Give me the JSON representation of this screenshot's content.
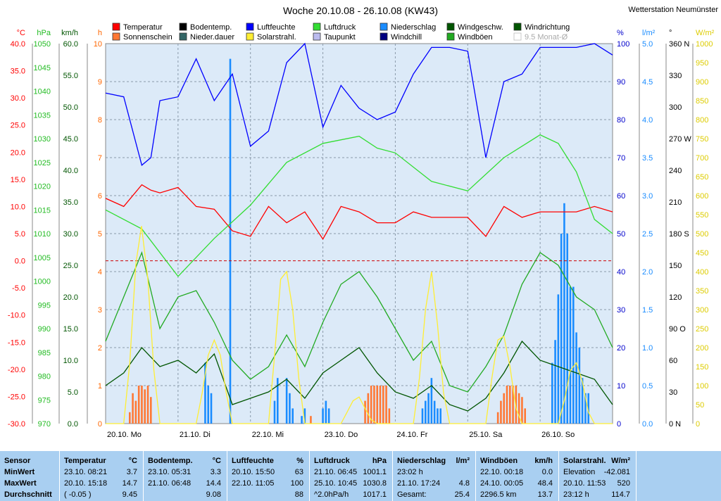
{
  "title": "Woche 20.10.08 - 26.10.08 (KW43)",
  "station": "Wetterstation Neumünster",
  "legend": [
    {
      "label": "Temperatur",
      "color": "#ff0000"
    },
    {
      "label": "Bodentemp.",
      "color": "#000000"
    },
    {
      "label": "Luftfeuchte",
      "color": "#0000ff"
    },
    {
      "label": "Luftdruck",
      "color": "#33dd33"
    },
    {
      "label": "Niederschlag",
      "color": "#1a8cff"
    },
    {
      "label": "Windgeschw.",
      "color": "#005500"
    },
    {
      "label": "Windrichtung",
      "color": "#005500"
    },
    {
      "label": "Sonnenschein",
      "color": "#ff7733"
    },
    {
      "label": "Nieder.dauer",
      "color": "#336666"
    },
    {
      "label": "Solarstrahl.",
      "color": "#ffee33"
    },
    {
      "label": "Taupunkt",
      "color": "#bbbbee"
    },
    {
      "label": "Windchill",
      "color": "#000080"
    },
    {
      "label": "Windböen",
      "color": "#22aa22"
    },
    {
      "label": "9.5 Monat-Ø",
      "color": "#dddddd"
    }
  ],
  "axes": {
    "temp": {
      "unit": "°C",
      "color": "#ff0000",
      "ticks": [
        "40.0",
        "35.0",
        "30.0",
        "25.0",
        "20.0",
        "15.0",
        "10.0",
        "5.0",
        "0.0",
        "-5.0",
        "-10.0",
        "-15.0",
        "-20.0",
        "-25.0",
        "-30.0"
      ]
    },
    "press": {
      "unit": "hPa",
      "color": "#22bb22",
      "ticks": [
        "1050",
        "1045",
        "1040",
        "1035",
        "1030",
        "1025",
        "1020",
        "1015",
        "1010",
        "1005",
        "1000",
        "995",
        "990",
        "985",
        "980",
        "975",
        "970"
      ]
    },
    "wind": {
      "unit": "km/h",
      "color": "#005500",
      "ticks": [
        "60.0",
        "55.0",
        "50.0",
        "45.0",
        "40.0",
        "35.0",
        "30.0",
        "25.0",
        "20.0",
        "15.0",
        "10.0",
        "5.0",
        "0.0"
      ]
    },
    "hours": {
      "unit": "h",
      "color": "#ff6600",
      "ticks": [
        "10",
        "9",
        "8",
        "7",
        "6",
        "5",
        "4",
        "3",
        "2",
        "1",
        "0"
      ]
    },
    "hum": {
      "unit": "%",
      "color": "#0000cc",
      "ticks": [
        "100",
        "90",
        "80",
        "70",
        "60",
        "50",
        "40",
        "30",
        "20",
        "10",
        "0"
      ]
    },
    "rain": {
      "unit": "l/m²",
      "color": "#1a8cff",
      "ticks": [
        "5.0",
        "4.5",
        "4.0",
        "3.5",
        "3.0",
        "2.5",
        "2.0",
        "1.5",
        "1.0",
        "0.5",
        "0.0"
      ]
    },
    "dir": {
      "unit": "°",
      "color": "#000000",
      "ticks": [
        "360 N",
        "330",
        "300",
        "270 W",
        "240",
        "210",
        "180 S",
        "150",
        "120",
        "90 O",
        "60",
        "30",
        "0 N"
      ]
    },
    "solar": {
      "unit": "W/m²",
      "color": "#ddcc00",
      "ticks": [
        "1000",
        "950",
        "900",
        "850",
        "800",
        "750",
        "700",
        "650",
        "600",
        "550",
        "500",
        "450",
        "400",
        "350",
        "300",
        "250",
        "200",
        "150",
        "100",
        "50",
        "0"
      ]
    }
  },
  "days": [
    "20.10. Mo",
    "21.10. Di",
    "22.10. Mi",
    "23.10. Do",
    "24.10. Fr",
    "25.10. Sa",
    "26.10. So"
  ],
  "chart_data": {
    "type": "line",
    "x_unit": "hours since 20.10. 00:00",
    "series": [
      {
        "name": "Temperatur",
        "axis": "temp",
        "color": "#ff0000",
        "x": [
          0,
          6,
          12,
          15,
          18,
          24,
          30,
          36,
          42,
          48,
          54,
          60,
          66,
          72,
          78,
          84,
          90,
          96,
          102,
          108,
          114,
          120,
          126,
          132,
          138,
          144,
          150,
          156,
          162,
          168
        ],
        "values": [
          11.5,
          10,
          14,
          13,
          12.5,
          13.5,
          10,
          9.5,
          5.5,
          4.5,
          10,
          7,
          9,
          4,
          10,
          9,
          7,
          7,
          9,
          8,
          8,
          8,
          4.5,
          10,
          8,
          9,
          9,
          9,
          10,
          9
        ]
      },
      {
        "name": "Luftdruck",
        "axis": "press",
        "color": "#33dd33",
        "x": [
          0,
          12,
          24,
          36,
          48,
          60,
          72,
          84,
          90,
          96,
          108,
          120,
          132,
          144,
          150,
          156,
          162,
          168
        ],
        "values": [
          1015,
          1011,
          1001,
          1009,
          1016,
          1025,
          1029,
          1030.5,
          1028,
          1027,
          1021,
          1019,
          1026,
          1030.8,
          1029,
          1023,
          1013,
          1010
        ]
      },
      {
        "name": "Luftfeuchte",
        "axis": "hum",
        "color": "#0000ff",
        "x": [
          0,
          6,
          12,
          15,
          18,
          24,
          30,
          36,
          42,
          48,
          54,
          60,
          66,
          72,
          78,
          84,
          90,
          96,
          102,
          108,
          114,
          120,
          126,
          132,
          138,
          144,
          150,
          156,
          162,
          168
        ],
        "values": [
          87,
          86,
          68,
          70,
          85,
          86,
          96,
          85,
          92,
          73,
          77,
          95,
          100,
          78,
          89,
          83,
          80,
          82,
          92,
          99,
          99,
          98,
          70,
          90,
          92,
          99,
          99,
          99,
          100,
          97
        ]
      },
      {
        "name": "Windgeschw.",
        "axis": "wind",
        "color": "#005500",
        "x": [
          0,
          6,
          12,
          18,
          24,
          30,
          36,
          42,
          48,
          54,
          60,
          66,
          72,
          78,
          84,
          90,
          96,
          102,
          108,
          114,
          120,
          126,
          132,
          138,
          144,
          150,
          156,
          162,
          168
        ],
        "values": [
          6,
          8,
          12,
          9,
          10,
          8,
          11,
          3,
          4,
          5,
          7,
          4,
          8,
          10,
          12,
          8,
          5,
          4,
          6,
          3,
          2,
          4,
          8,
          13,
          10,
          9,
          8,
          7,
          3
        ]
      },
      {
        "name": "Windböen",
        "axis": "wind",
        "color": "#22aa22",
        "x": [
          0,
          6,
          12,
          18,
          24,
          30,
          36,
          42,
          48,
          54,
          60,
          66,
          72,
          78,
          84,
          90,
          96,
          102,
          108,
          114,
          120,
          126,
          132,
          138,
          144,
          150,
          156,
          162,
          168
        ],
        "values": [
          13,
          20,
          27,
          15,
          20,
          21,
          16,
          10,
          7,
          9,
          14,
          9,
          16,
          22,
          24,
          20,
          15,
          10,
          13,
          6,
          5,
          9,
          14,
          22,
          27,
          25,
          20,
          18,
          12
        ]
      },
      {
        "name": "Solarstrahl.",
        "axis": "solar",
        "color": "#ffee33",
        "x": [
          0,
          6,
          8,
          10,
          11.9,
          14,
          16,
          18,
          24,
          30,
          32,
          34,
          36,
          38,
          40,
          42,
          48,
          54,
          56,
          58,
          60,
          62,
          64,
          66,
          72,
          78,
          80,
          82,
          84,
          86,
          88,
          90,
          96,
          102,
          104,
          106,
          108,
          110,
          112,
          114,
          120,
          126,
          128,
          130,
          132,
          134,
          136,
          138,
          144,
          150,
          152,
          154,
          156,
          158,
          160,
          162,
          168
        ],
        "values": [
          0,
          0,
          160,
          420,
          520,
          380,
          140,
          0,
          0,
          0,
          80,
          180,
          220,
          180,
          80,
          0,
          0,
          0,
          180,
          380,
          400,
          300,
          120,
          0,
          0,
          0,
          30,
          60,
          70,
          40,
          10,
          0,
          0,
          0,
          120,
          300,
          400,
          260,
          80,
          0,
          0,
          0,
          120,
          220,
          230,
          150,
          40,
          0,
          0,
          0,
          60,
          140,
          160,
          110,
          30,
          0,
          0
        ]
      }
    ],
    "bars": [
      {
        "name": "Niederschlag",
        "axis": "rain",
        "color": "#1a8cff",
        "x": [
          33,
          34,
          35,
          41.3,
          56,
          57,
          60,
          61,
          62,
          65,
          66,
          72,
          73,
          74,
          105,
          106,
          107,
          108,
          109,
          110,
          111,
          148,
          149,
          150,
          151,
          152,
          153,
          154,
          155,
          156,
          157,
          158,
          159,
          160
        ],
        "values": [
          0.8,
          0.5,
          0.4,
          4.8,
          0.3,
          0.6,
          0.6,
          0.4,
          0.2,
          0.1,
          0.2,
          0.2,
          0.3,
          0.2,
          0.2,
          0.3,
          0.4,
          0.6,
          0.3,
          0.2,
          0.2,
          0.8,
          1.1,
          1.7,
          2.5,
          2.9,
          2.5,
          1.8,
          1.8,
          1.2,
          1.0,
          0.6,
          0.4,
          0.4
        ]
      },
      {
        "name": "Sonnenschein",
        "axis": "hours",
        "color": "#ff7733",
        "x": [
          8,
          9,
          10,
          11,
          12,
          13,
          14,
          15,
          68,
          86,
          87,
          88,
          89,
          90,
          91,
          92,
          93,
          94,
          130,
          131,
          132,
          133,
          134,
          135,
          136,
          137,
          138,
          139
        ],
        "values": [
          0.3,
          0.8,
          0.6,
          1.0,
          1.0,
          0.9,
          1.0,
          0.7,
          0.2,
          0.6,
          0.8,
          1.0,
          1.0,
          1.0,
          1.0,
          1.0,
          1.0,
          0.4,
          0.3,
          0.6,
          0.8,
          1.0,
          1.0,
          1.0,
          1.0,
          0.8,
          0.7,
          0.4
        ]
      }
    ],
    "ref_lines": [
      {
        "axis": "temp",
        "value": 0,
        "color": "#cc0000",
        "style": "dashed"
      }
    ]
  },
  "stats": {
    "columns": [
      {
        "title": "Sensor",
        "unit": "",
        "rows": [
          {
            "a": "MinWert",
            "b": ""
          },
          {
            "a": "MaxWert",
            "b": ""
          },
          {
            "a": "Durchschnitt",
            "b": ""
          }
        ]
      },
      {
        "title": "Temperatur",
        "unit": "°C",
        "rows": [
          {
            "a": "23.10.  08:21",
            "b": "3.7"
          },
          {
            "a": "20.10.  15:18",
            "b": "14.7"
          },
          {
            "a": "( -0.05 )",
            "b": "9.45"
          }
        ]
      },
      {
        "title": "Bodentemp.",
        "unit": "°C",
        "rows": [
          {
            "a": "23.10.  05:31",
            "b": "3.3"
          },
          {
            "a": "21.10.  06:48",
            "b": "14.4"
          },
          {
            "a": "",
            "b": "9.08"
          }
        ]
      },
      {
        "title": "Luftfeuchte",
        "unit": "%",
        "rows": [
          {
            "a": "20.10.  15:50",
            "b": "63"
          },
          {
            "a": "22.10.  11:05",
            "b": "100"
          },
          {
            "a": "",
            "b": "88"
          }
        ]
      },
      {
        "title": "Luftdruck",
        "unit": "hPa",
        "rows": [
          {
            "a": "21.10.  06:45",
            "b": "1001.1"
          },
          {
            "a": "25.10.  10:45",
            "b": "1030.8"
          },
          {
            "a": "^2.0hPa/h",
            "b": "1017.1"
          }
        ]
      },
      {
        "title": "Niederschlag",
        "unit": "l/m²",
        "rows": [
          {
            "a": "23:02 h",
            "b": ""
          },
          {
            "a": "21.10.  17:24",
            "b": "4.8"
          },
          {
            "a": "Gesamt:",
            "b": "25.4"
          }
        ]
      },
      {
        "title": "Windböen",
        "unit": "km/h",
        "rows": [
          {
            "a": "22.10.  00:18",
            "b": "0.0"
          },
          {
            "a": "24.10.  00:05",
            "b": "48.4"
          },
          {
            "a": "2296.5 km",
            "b": "13.7"
          }
        ]
      },
      {
        "title": "Solarstrahl.",
        "unit": "W/m²",
        "rows": [
          {
            "a": "Elevation",
            "b": "-42.081"
          },
          {
            "a": "20.10.  11:53",
            "b": "520"
          },
          {
            "a": "23:12 h",
            "b": "114.7"
          }
        ]
      }
    ]
  }
}
